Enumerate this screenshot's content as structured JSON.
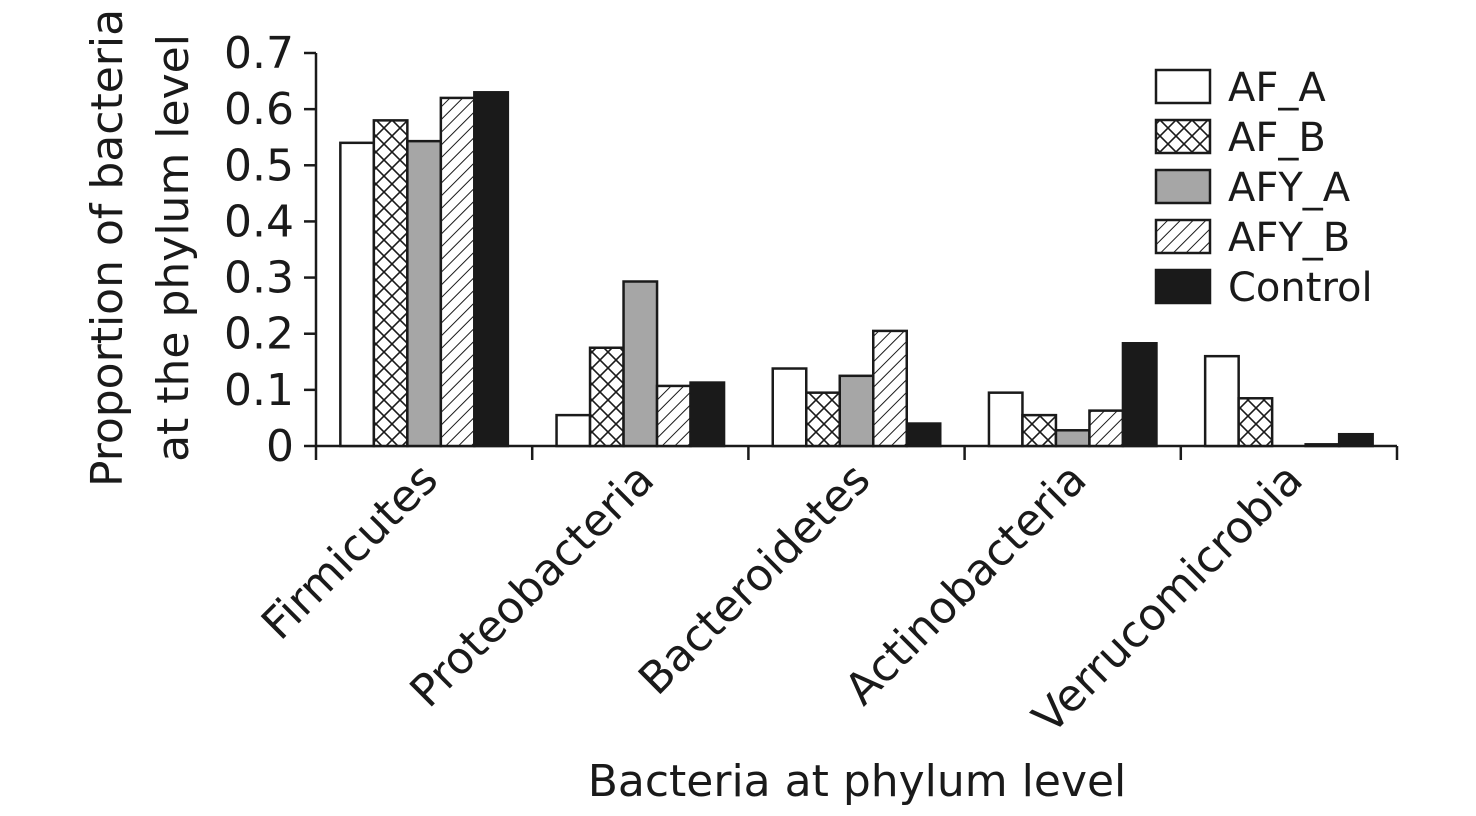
{
  "chart_data": {
    "type": "bar",
    "title": "",
    "xlabel": "Bacteria at phylum level",
    "ylabel": [
      "Proportion of bacteria",
      "at the phylum level"
    ],
    "ylim": [
      0,
      0.7
    ],
    "yticks": [
      "0",
      "0.1",
      "0.2",
      "0.3",
      "0.4",
      "0.5",
      "0.6",
      "0.7"
    ],
    "categories": [
      "Firmicutes",
      "Proteobacteria",
      "Bacteroidetes",
      "Actinobacteria",
      "Verrucomicrobia"
    ],
    "series": [
      {
        "name": "AF_A",
        "values": [
          0.54,
          0.055,
          0.138,
          0.095,
          0.16
        ],
        "pattern": "white",
        "color": "#ffffff"
      },
      {
        "name": "AF_B",
        "values": [
          0.58,
          0.175,
          0.095,
          0.055,
          0.085
        ],
        "pattern": "crosshatch",
        "color": "#ffffff"
      },
      {
        "name": "AFY_A",
        "values": [
          0.543,
          0.293,
          0.125,
          0.028,
          0.0
        ],
        "pattern": "gray",
        "color": "#a6a6a6"
      },
      {
        "name": "AFY_B",
        "values": [
          0.62,
          0.107,
          0.205,
          0.063,
          0.003
        ],
        "pattern": "diagonal",
        "color": "#ffffff"
      },
      {
        "name": "Control",
        "values": [
          0.63,
          0.113,
          0.04,
          0.183,
          0.021
        ],
        "pattern": "black",
        "color": "#1a1a1a"
      }
    ],
    "legend_position": "top-right",
    "grid": false
  }
}
